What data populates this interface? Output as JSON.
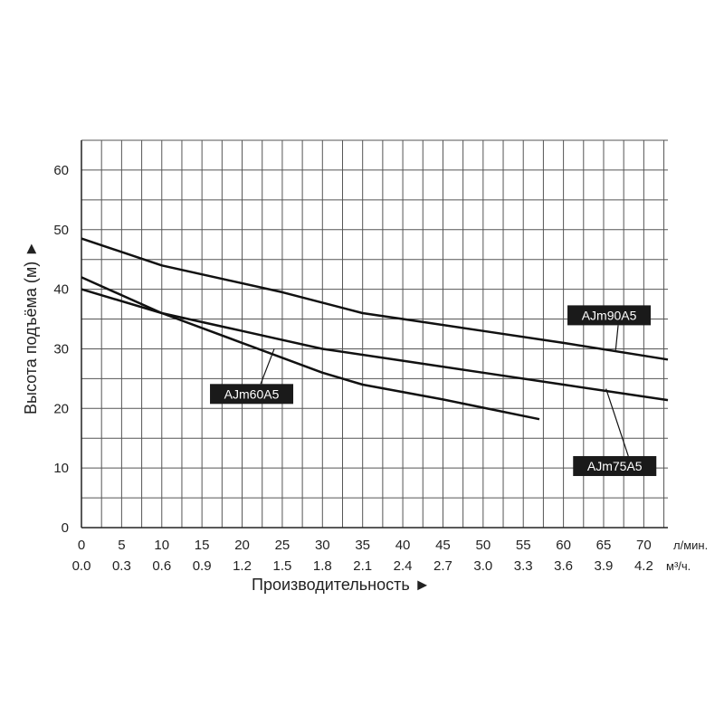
{
  "chart_data": {
    "type": "line",
    "ylabel": "Высота подъёма (м) ►",
    "xlabel": "Производительность ►",
    "ylim": [
      0,
      65
    ],
    "xlim": [
      0,
      73
    ],
    "y_ticks": [
      "0",
      "10",
      "20",
      "30",
      "40",
      "50",
      "60"
    ],
    "x_ticks_primary": [
      "0",
      "5",
      "10",
      "15",
      "20",
      "25",
      "30",
      "35",
      "40",
      "45",
      "50",
      "55",
      "60",
      "65",
      "70"
    ],
    "x_unit_primary": "л/мин.",
    "x_ticks_secondary": [
      "0.0",
      "0.3",
      "0.6",
      "0.9",
      "1.2",
      "1.5",
      "1.8",
      "2.1",
      "2.4",
      "2.7",
      "3.0",
      "3.3",
      "3.6",
      "3.9",
      "4.2"
    ],
    "x_unit_secondary": "м³/ч.",
    "grid": true,
    "series": [
      {
        "name": "AJm90A5",
        "x": [
          0,
          10,
          25,
          35,
          40,
          50,
          60,
          73
        ],
        "y": [
          48.5,
          44,
          39.5,
          36,
          35,
          33,
          31,
          28.2
        ]
      },
      {
        "name": "AJm75A5",
        "x": [
          0,
          10,
          20,
          30,
          40,
          50,
          60,
          73
        ],
        "y": [
          40,
          36,
          33,
          30,
          28,
          26,
          24,
          21.4
        ]
      },
      {
        "name": "AJm60A5",
        "x": [
          0,
          10,
          20,
          30,
          35,
          45,
          57
        ],
        "y": [
          42,
          36,
          31,
          26,
          24,
          21.5,
          18.2
        ]
      }
    ]
  }
}
